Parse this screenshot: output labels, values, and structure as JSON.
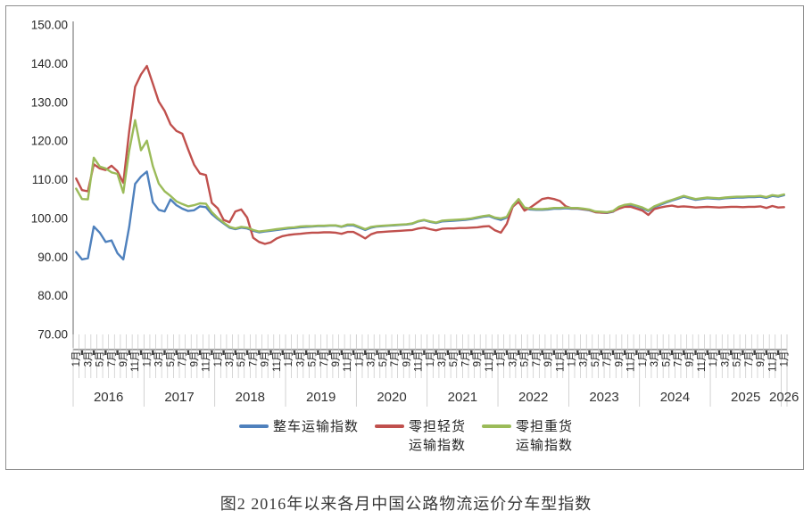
{
  "chart_data": {
    "type": "line",
    "title": "图2 2016年以来各月中国公路物流运价分车型指数",
    "frequency": "monthly",
    "x_start": "2016-01",
    "x_end": "2026-01",
    "grid": "none",
    "legend_position": "bottom",
    "y_axis": {
      "min": 70,
      "max": 150,
      "step": 10,
      "tick_labels": [
        "150.00",
        "140.00",
        "130.00",
        "120.00",
        "110.00",
        "100.00",
        "90.00",
        "80.00",
        "70.00"
      ]
    },
    "x_axis": {
      "years": [
        "2016",
        "2017",
        "2018",
        "2019",
        "2020",
        "2021",
        "2022",
        "2023",
        "2024",
        "2025",
        "2026"
      ],
      "labeled_months": [
        1,
        3,
        5,
        7,
        9,
        11
      ],
      "month_label_suffix": "月",
      "months_per_year": 12,
      "last_year_month_count": 1
    },
    "series": [
      {
        "key": "ftl-index",
        "name": "整车运输指数",
        "name_lines": [
          "整车运输指数"
        ],
        "color": "#4F81BD",
        "values": [
          91.3,
          89.4,
          89.7,
          97.9,
          96.3,
          93.9,
          94.3,
          91.0,
          89.4,
          97.8,
          108.9,
          110.8,
          112.1,
          104.2,
          102.2,
          101.8,
          104.9,
          103.4,
          102.5,
          101.9,
          102.1,
          103.1,
          102.9,
          101.1,
          99.8,
          98.7,
          97.6,
          97.2,
          97.6,
          97.4,
          96.8,
          96.4,
          96.6,
          96.8,
          97.0,
          97.2,
          97.4,
          97.5,
          97.7,
          97.8,
          97.9,
          98.0,
          98.0,
          98.1,
          98.1,
          97.8,
          98.2,
          98.2,
          97.6,
          97.0,
          97.6,
          97.9,
          98.0,
          98.1,
          98.2,
          98.3,
          98.4,
          98.6,
          99.2,
          99.5,
          99.1,
          98.8,
          99.2,
          99.3,
          99.4,
          99.5,
          99.6,
          99.8,
          100.1,
          100.4,
          100.6,
          100.0,
          99.6,
          100.2,
          103.0,
          104.7,
          102.6,
          102.3,
          102.2,
          102.2,
          102.3,
          102.5,
          102.5,
          102.6,
          102.5,
          102.5,
          102.3,
          102.1,
          101.6,
          101.5,
          101.4,
          101.7,
          102.8,
          103.3,
          103.5,
          103.1,
          102.6,
          101.9,
          102.9,
          103.5,
          104.1,
          104.6,
          105.1,
          105.6,
          105.2,
          104.8,
          105.0,
          105.2,
          105.1,
          105.0,
          105.2,
          105.3,
          105.4,
          105.4,
          105.5,
          105.5,
          105.6,
          105.3,
          105.8,
          105.6,
          106.0
        ]
      },
      {
        "key": "ltl-light-index",
        "name": "零担轻货运输指数",
        "name_lines": [
          "零担轻货",
          "运输指数"
        ],
        "color": "#C0504D",
        "values": [
          110.3,
          107.3,
          107.0,
          114.0,
          112.9,
          112.5,
          113.6,
          112.2,
          109.2,
          122.5,
          134.0,
          137.2,
          139.4,
          134.8,
          130.2,
          127.8,
          124.3,
          122.6,
          121.9,
          117.8,
          113.9,
          111.6,
          111.2,
          104.0,
          102.6,
          99.6,
          99.0,
          101.8,
          102.3,
          100.2,
          95.0,
          93.9,
          93.4,
          93.8,
          94.8,
          95.4,
          95.7,
          95.9,
          96.0,
          96.2,
          96.3,
          96.3,
          96.4,
          96.4,
          96.3,
          96.0,
          96.5,
          96.5,
          95.7,
          94.8,
          95.9,
          96.4,
          96.5,
          96.6,
          96.7,
          96.8,
          96.9,
          97.0,
          97.4,
          97.6,
          97.2,
          96.9,
          97.3,
          97.4,
          97.4,
          97.5,
          97.5,
          97.6,
          97.7,
          97.9,
          98.0,
          96.9,
          96.3,
          98.6,
          103.0,
          104.3,
          102.0,
          102.8,
          103.9,
          105.0,
          105.3,
          105.0,
          104.5,
          103.1,
          102.6,
          102.6,
          102.4,
          102.2,
          101.6,
          101.5,
          101.5,
          101.8,
          102.5,
          103.0,
          103.0,
          102.5,
          102.0,
          100.9,
          102.4,
          102.8,
          103.1,
          103.3,
          103.0,
          103.1,
          103.0,
          102.8,
          102.9,
          103.0,
          102.9,
          102.8,
          102.9,
          103.0,
          103.0,
          102.9,
          103.0,
          103.0,
          103.1,
          102.7,
          103.2,
          102.8,
          102.9
        ]
      },
      {
        "key": "ltl-heavy-index",
        "name": "零担重货运输指数",
        "name_lines": [
          "零担重货",
          "运输指数"
        ],
        "color": "#9BBB59",
        "values": [
          107.7,
          105.0,
          104.9,
          115.7,
          113.4,
          112.9,
          111.9,
          111.5,
          106.6,
          117.5,
          125.4,
          117.6,
          120.1,
          113.5,
          109.0,
          107.0,
          105.8,
          104.4,
          103.7,
          103.1,
          103.4,
          103.9,
          103.8,
          101.6,
          100.1,
          98.9,
          97.8,
          97.4,
          97.8,
          97.6,
          97.0,
          96.6,
          96.8,
          97.0,
          97.2,
          97.4,
          97.6,
          97.7,
          97.9,
          98.0,
          98.0,
          98.1,
          98.1,
          98.2,
          98.2,
          97.9,
          98.4,
          98.4,
          97.8,
          97.2,
          97.8,
          98.0,
          98.1,
          98.2,
          98.3,
          98.4,
          98.5,
          98.7,
          99.3,
          99.6,
          99.2,
          98.9,
          99.4,
          99.5,
          99.6,
          99.7,
          99.8,
          100.0,
          100.3,
          100.6,
          100.8,
          100.2,
          100.0,
          100.4,
          103.3,
          105.0,
          102.8,
          102.5,
          102.4,
          102.4,
          102.5,
          102.7,
          102.7,
          102.8,
          102.7,
          102.7,
          102.5,
          102.3,
          101.8,
          101.7,
          101.6,
          101.9,
          103.0,
          103.5,
          103.7,
          103.3,
          102.8,
          102.1,
          103.1,
          103.7,
          104.3,
          104.8,
          105.3,
          105.8,
          105.4,
          105.0,
          105.2,
          105.4,
          105.3,
          105.2,
          105.4,
          105.5,
          105.6,
          105.6,
          105.7,
          105.7,
          105.8,
          105.5,
          106.0,
          105.8,
          106.2
        ]
      }
    ],
    "colors": {
      "axis_line": "#7f7f7f",
      "category_axis_line": "#4d4d4d",
      "tick_comb": "#c6c6c6",
      "tick_dash": "#3f3f3f",
      "tick_text": "#262626",
      "year_text": "#333333",
      "frame_border": "#8f8f8f"
    }
  }
}
